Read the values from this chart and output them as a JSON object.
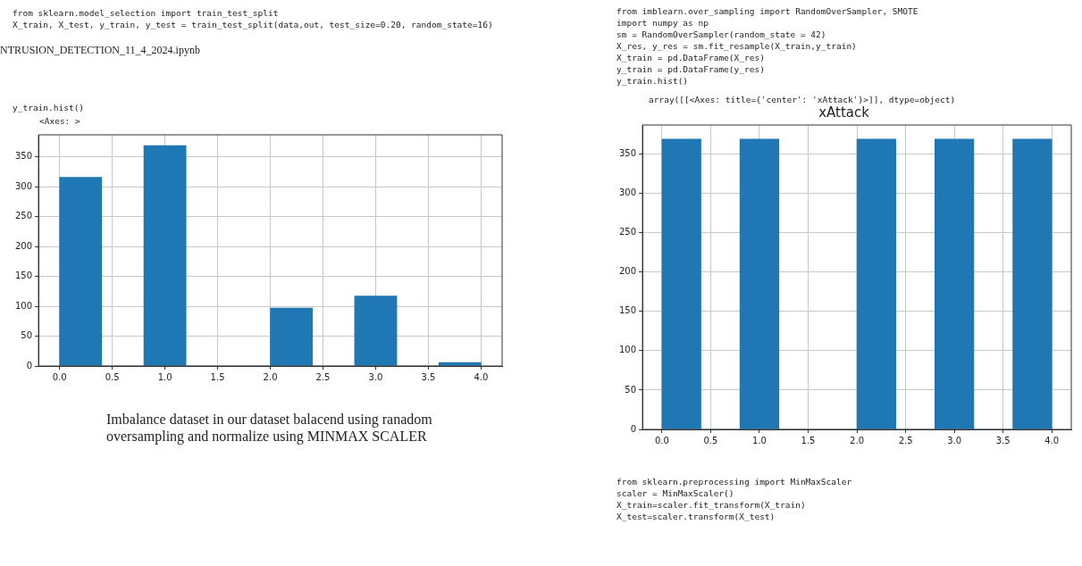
{
  "chart_data": [
    {
      "type": "histogram",
      "bins": [
        0,
        0.4,
        0.8,
        1.2,
        1.6,
        2.0,
        2.4,
        2.8,
        3.2,
        3.6,
        4.0
      ],
      "values": [
        316,
        0,
        369,
        0,
        0,
        97,
        0,
        117,
        0,
        6
      ],
      "color": "#1f77b4",
      "xlim": [
        -0.2,
        4.2
      ],
      "ylim": [
        0,
        387
      ],
      "xticks": [
        {
          "value": 0,
          "label": "0.0"
        },
        {
          "value": 0.5,
          "label": "0.5"
        },
        {
          "value": 1,
          "label": "1.0"
        },
        {
          "value": 1.5,
          "label": "1.5"
        },
        {
          "value": 2,
          "label": "2.0"
        },
        {
          "value": 2.5,
          "label": "2.5"
        },
        {
          "value": 3,
          "label": "3.0"
        },
        {
          "value": 3.5,
          "label": "3.5"
        },
        {
          "value": 4,
          "label": "4.0"
        }
      ],
      "yticks": [
        0,
        50,
        100,
        150,
        200,
        250,
        300,
        350
      ],
      "grid": true,
      "annotations": [
        "from sklearn.model_selection import train_test_split",
        "X_train, X_test, y_train, y_test = train_test_split(data,out, test_size=0.20, random_state=16)",
        "NTRUSION_DETECTION_11_4_2024.ipynb",
        "y_train.hist()",
        "<Axes: >",
        "Imbalance dataset in our dataset balacend using ranadom oversampling and normalize using MINMAX SCALER"
      ]
    },
    {
      "type": "histogram",
      "title": "xAttack",
      "bins": [
        0,
        0.4,
        0.8,
        1.2,
        1.6,
        2.0,
        2.4,
        2.8,
        3.2,
        3.6,
        4.0
      ],
      "values": [
        369,
        0,
        369,
        0,
        0,
        369,
        0,
        369,
        0,
        369
      ],
      "color": "#1f77b4",
      "xlim": [
        -0.2,
        4.2
      ],
      "ylim": [
        0,
        387
      ],
      "xticks": [
        {
          "value": 0,
          "label": "0.0"
        },
        {
          "value": 0.5,
          "label": "0.5"
        },
        {
          "value": 1,
          "label": "1.0"
        },
        {
          "value": 1.5,
          "label": "1.5"
        },
        {
          "value": 2,
          "label": "2.0"
        },
        {
          "value": 2.5,
          "label": "2.5"
        },
        {
          "value": 3,
          "label": "3.0"
        },
        {
          "value": 3.5,
          "label": "3.5"
        },
        {
          "value": 4,
          "label": "4.0"
        }
      ],
      "yticks": [
        0,
        50,
        100,
        150,
        200,
        250,
        300,
        350
      ],
      "grid": true,
      "annotations": [
        "from imblearn.over_sampling import RandomOverSampler, SMOTE",
        "import numpy as np",
        "sm = RandomOverSampler(random_state = 42)",
        "X_res, y_res = sm.fit_resample(X_train,y_train)",
        "X_train = pd.DataFrame(X_res)",
        "y_train = pd.DataFrame(y_res)",
        "y_train.hist()",
        "array([[<Axes: title={'center': 'xAttack'}>]], dtype=object)",
        "from sklearn.preprocessing import MinMaxScaler",
        "scaler = MinMaxScaler()",
        "X_train=scaler.fit_transform(X_train)",
        "X_test=scaler.transform(X_test)"
      ]
    }
  ]
}
